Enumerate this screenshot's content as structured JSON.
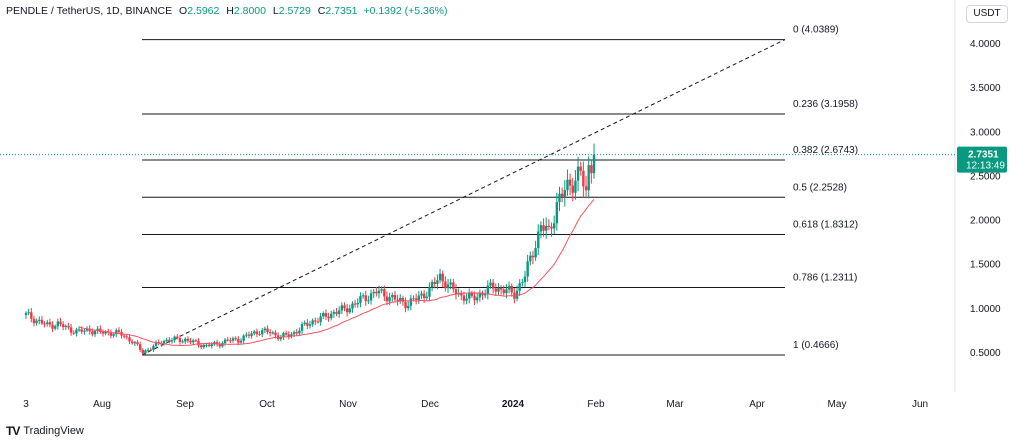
{
  "header": {
    "symbol": "PENDLE / TetherUS, 1D, BINANCE",
    "open_label": "O",
    "open": "2.5962",
    "high_label": "H",
    "high": "2.8000",
    "low_label": "L",
    "low": "2.5729",
    "close_label": "C",
    "close": "2.7351",
    "change": "+0.1392 (+5.36%)"
  },
  "currency_button": "USDT",
  "footer": {
    "brand_mark": "TV",
    "brand": "TradingView"
  },
  "price_badge": {
    "price": "2.7351",
    "countdown": "12:13:49"
  },
  "colors": {
    "up": "#089981",
    "down": "#f23645",
    "ma": "#f7525f",
    "badge": "#089981"
  },
  "chart_data": {
    "type": "candlestick",
    "title": "PENDLE / TetherUS, 1D, BINANCE",
    "x_ticks": [
      "3",
      "Aug",
      "Sep",
      "Oct",
      "Nov",
      "Dec",
      "2024",
      "Feb",
      "Mar",
      "Apr",
      "May",
      "Jun"
    ],
    "y_ticks": [
      "4.0000",
      "3.5000",
      "3.0000",
      "2.5000",
      "2.0000",
      "1.5000",
      "1.0000",
      "0.5000"
    ],
    "y_tick_values": [
      4.0,
      3.5,
      3.0,
      2.5,
      2.0,
      1.5,
      1.0,
      0.5
    ],
    "ylim": [
      0.22,
      4.35
    ],
    "x_tick_days": [
      0,
      29,
      60,
      90,
      121,
      151,
      182,
      213,
      242,
      273,
      303,
      334
    ],
    "xlim_days": [
      0,
      355
    ],
    "last_price": 2.7351,
    "fib_retracement": {
      "start_day": 44,
      "end_day": 289,
      "levels": [
        {
          "ratio": "0",
          "label": "0 (4.0389)",
          "value": 4.0389
        },
        {
          "ratio": "0.236",
          "label": "0.236 (3.1958)",
          "value": 3.1958
        },
        {
          "ratio": "0.382",
          "label": "0.382 (2.6743)",
          "value": 2.6743
        },
        {
          "ratio": "0.5",
          "label": "0.5 (2.2528)",
          "value": 2.2528
        },
        {
          "ratio": "0.618",
          "label": "0.618 (1.8312)",
          "value": 1.8312
        },
        {
          "ratio": "0.786",
          "label": "0.786 (1.2311)",
          "value": 1.2311
        },
        {
          "ratio": "1",
          "label": "1 (0.4666)",
          "value": 0.4666
        }
      ]
    },
    "trend_line": {
      "start_day": 44,
      "start_value": 0.4666,
      "end_day": 289,
      "end_value": 4.0389
    },
    "price_path": [
      [
        0,
        0.92
      ],
      [
        4,
        0.86
      ],
      [
        8,
        0.8
      ],
      [
        12,
        0.82
      ],
      [
        16,
        0.76
      ],
      [
        20,
        0.73
      ],
      [
        24,
        0.75
      ],
      [
        28,
        0.72
      ],
      [
        32,
        0.72
      ],
      [
        36,
        0.7
      ],
      [
        40,
        0.62
      ],
      [
        44,
        0.5
      ],
      [
        48,
        0.56
      ],
      [
        52,
        0.63
      ],
      [
        56,
        0.64
      ],
      [
        60,
        0.64
      ],
      [
        64,
        0.6
      ],
      [
        68,
        0.57
      ],
      [
        72,
        0.59
      ],
      [
        76,
        0.63
      ],
      [
        80,
        0.64
      ],
      [
        84,
        0.69
      ],
      [
        88,
        0.74
      ],
      [
        92,
        0.72
      ],
      [
        96,
        0.67
      ],
      [
        100,
        0.7
      ],
      [
        104,
        0.78
      ],
      [
        108,
        0.85
      ],
      [
        112,
        0.89
      ],
      [
        116,
        0.95
      ],
      [
        120,
        0.98
      ],
      [
        124,
        1.05
      ],
      [
        128,
        1.12
      ],
      [
        132,
        1.18
      ],
      [
        136,
        1.14
      ],
      [
        140,
        1.08
      ],
      [
        144,
        1.05
      ],
      [
        148,
        1.12
      ],
      [
        152,
        1.2
      ],
      [
        156,
        1.36
      ],
      [
        160,
        1.22
      ],
      [
        164,
        1.14
      ],
      [
        168,
        1.1
      ],
      [
        172,
        1.17
      ],
      [
        176,
        1.24
      ],
      [
        180,
        1.2
      ],
      [
        184,
        1.16
      ],
      [
        188,
        1.36
      ],
      [
        191,
        1.65
      ],
      [
        194,
        1.92
      ],
      [
        197,
        1.85
      ],
      [
        200,
        2.18
      ],
      [
        203,
        2.32
      ],
      [
        206,
        2.45
      ],
      [
        209,
        2.52
      ],
      [
        211,
        2.28
      ],
      [
        212,
        2.59
      ],
      [
        214,
        2.73
      ]
    ]
  }
}
